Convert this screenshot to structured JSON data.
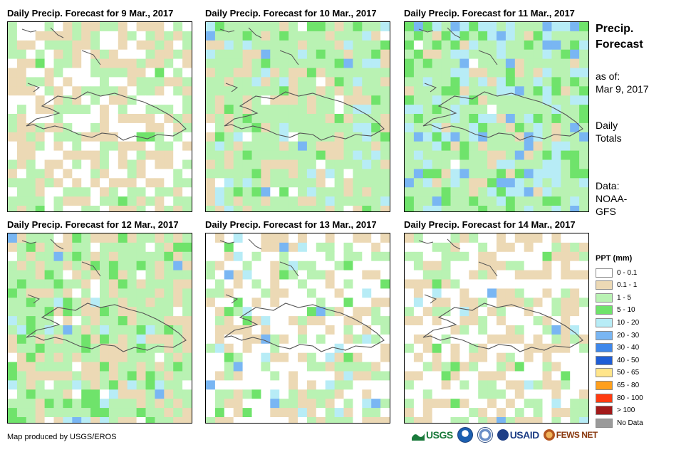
{
  "panels": [
    {
      "title": "Daily Precip. Forecast for 9 Mar., 2017",
      "seed": 11,
      "weights": [
        0.32,
        0.36,
        0.3,
        0.02,
        0.0,
        0.0
      ]
    },
    {
      "title": "Daily Precip. Forecast for 10 Mar., 2017",
      "seed": 23,
      "weights": [
        0.04,
        0.24,
        0.52,
        0.08,
        0.09,
        0.03
      ]
    },
    {
      "title": "Daily Precip. Forecast for 11 Mar., 2017",
      "seed": 37,
      "weights": [
        0.02,
        0.1,
        0.46,
        0.16,
        0.18,
        0.08
      ]
    },
    {
      "title": "Daily Precip. Forecast for 12 Mar., 2017",
      "seed": 41,
      "weights": [
        0.1,
        0.3,
        0.42,
        0.1,
        0.06,
        0.02
      ]
    },
    {
      "title": "Daily Precip. Forecast for 13 Mar., 2017",
      "seed": 53,
      "weights": [
        0.46,
        0.26,
        0.18,
        0.06,
        0.03,
        0.01
      ]
    },
    {
      "title": "Daily Precip. Forecast for 14 Mar., 2017",
      "seed": 67,
      "weights": [
        0.44,
        0.32,
        0.18,
        0.03,
        0.02,
        0.01
      ]
    }
  ],
  "side": {
    "title_line1": "Precip.",
    "title_line2": "Forecast",
    "asof_label": "as of:",
    "asof_date": "Mar 9, 2017",
    "daily_line1": "Daily",
    "daily_line2": "Totals",
    "data_line1": "Data:",
    "data_line2": "NOAA-",
    "data_line3": "GFS"
  },
  "legend": {
    "title": "PPT (mm)",
    "items": [
      {
        "label": "0 - 0.1",
        "color": "#ffffff"
      },
      {
        "label": "0.1 - 1",
        "color": "#ecd9b5"
      },
      {
        "label": "1 - 5",
        "color": "#b9f2b3"
      },
      {
        "label": "5 - 10",
        "color": "#6fe36b"
      },
      {
        "label": "10 - 20",
        "color": "#b7ecf6"
      },
      {
        "label": "20 - 30",
        "color": "#79b6f3"
      },
      {
        "label": "30 - 40",
        "color": "#3f87ea"
      },
      {
        "label": "40 - 50",
        "color": "#1f5ed6"
      },
      {
        "label": "50 - 65",
        "color": "#ffe58a"
      },
      {
        "label": "65 - 80",
        "color": "#ff9f1c"
      },
      {
        "label": "80 - 100",
        "color": "#ff3b11"
      },
      {
        "label": "> 100",
        "color": "#a31a1a"
      },
      {
        "label": "No Data",
        "color": "#9a9a9a"
      }
    ]
  },
  "credit": "Map produced by USGS/EROS",
  "logos": {
    "usgs": "USGS",
    "usaid": "USAID",
    "fewsnet": "FEWS NET"
  }
}
